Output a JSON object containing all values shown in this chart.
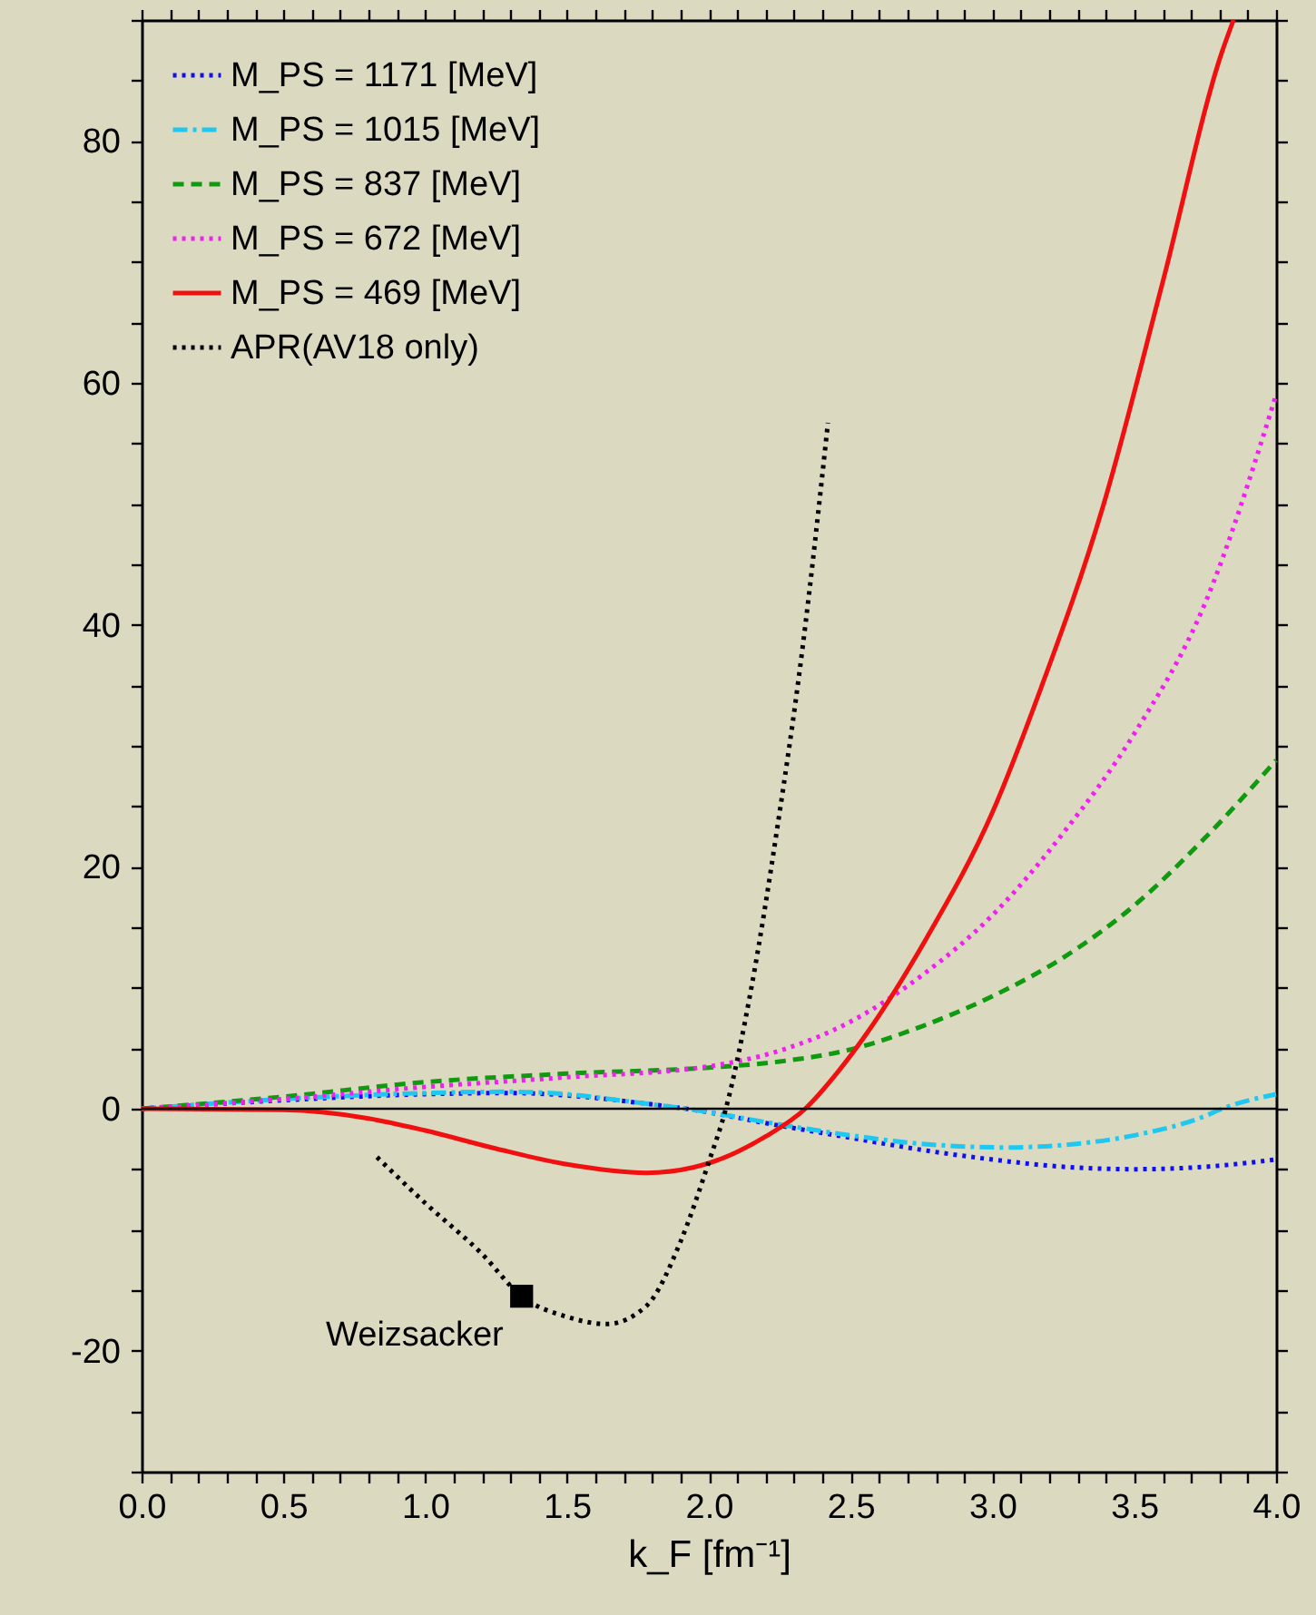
{
  "chart_data": {
    "type": "line",
    "xlabel": "k_F  [fm⁻¹]",
    "xlim": [
      0,
      4
    ],
    "ylim": [
      -30,
      90
    ],
    "xticks": [
      {
        "value": 0,
        "label": "0.0"
      },
      {
        "value": 0.1,
        "label": null
      },
      {
        "value": 0.2,
        "label": null
      },
      {
        "value": 0.3,
        "label": null
      },
      {
        "value": 0.4,
        "label": null
      },
      {
        "value": 0.5,
        "label": "0.5"
      },
      {
        "value": 0.6,
        "label": null
      },
      {
        "value": 0.7,
        "label": null
      },
      {
        "value": 0.8,
        "label": null
      },
      {
        "value": 0.9,
        "label": null
      },
      {
        "value": 1,
        "label": "1.0"
      },
      {
        "value": 1.1,
        "label": null
      },
      {
        "value": 1.2,
        "label": null
      },
      {
        "value": 1.3,
        "label": null
      },
      {
        "value": 1.4,
        "label": null
      },
      {
        "value": 1.5,
        "label": "1.5"
      },
      {
        "value": 1.6,
        "label": null
      },
      {
        "value": 1.7,
        "label": null
      },
      {
        "value": 1.8,
        "label": null
      },
      {
        "value": 1.9,
        "label": null
      },
      {
        "value": 2,
        "label": "2.0"
      },
      {
        "value": 2.1,
        "label": null
      },
      {
        "value": 2.2,
        "label": null
      },
      {
        "value": 2.3,
        "label": null
      },
      {
        "value": 2.4,
        "label": null
      },
      {
        "value": 2.5,
        "label": "2.5"
      },
      {
        "value": 2.6,
        "label": null
      },
      {
        "value": 2.7,
        "label": null
      },
      {
        "value": 2.8,
        "label": null
      },
      {
        "value": 2.9,
        "label": null
      },
      {
        "value": 3,
        "label": "3.0"
      },
      {
        "value": 3.1,
        "label": null
      },
      {
        "value": 3.2,
        "label": null
      },
      {
        "value": 3.3,
        "label": null
      },
      {
        "value": 3.4,
        "label": null
      },
      {
        "value": 3.5,
        "label": "3.5"
      },
      {
        "value": 3.6,
        "label": null
      },
      {
        "value": 3.7,
        "label": null
      },
      {
        "value": 3.8,
        "label": null
      },
      {
        "value": 3.9,
        "label": null
      },
      {
        "value": 4,
        "label": "4.0"
      }
    ],
    "yticks": [
      {
        "value": -30,
        "label": null
      },
      {
        "value": -25,
        "label": null
      },
      -20,
      {
        "value": -15,
        "label": null
      },
      {
        "value": -10,
        "label": null
      },
      {
        "value": -5,
        "label": null
      },
      0,
      {
        "value": 5,
        "label": null
      },
      {
        "value": 10,
        "label": null
      },
      {
        "value": 15,
        "label": null
      },
      20,
      {
        "value": 25,
        "label": null
      },
      {
        "value": 30,
        "label": null
      },
      {
        "value": 35,
        "label": null
      },
      40,
      {
        "value": 45,
        "label": null
      },
      {
        "value": 50,
        "label": null
      },
      {
        "value": 55,
        "label": null
      },
      60,
      {
        "value": 65,
        "label": null
      },
      {
        "value": 70,
        "label": null
      },
      {
        "value": 75,
        "label": null
      },
      80,
      {
        "value": 85,
        "label": null
      },
      {
        "value": 90,
        "label": null
      }
    ],
    "grid": false,
    "legend": "top left",
    "marker": "none",
    "series": [
      {
        "name": "M_PS = 1171 [MeV]",
        "color": "#1010ee",
        "line_style": "dotted",
        "x": [
          0,
          0.5,
          1.0,
          1.3,
          1.5,
          1.75,
          1.92,
          2.25,
          2.5,
          2.75,
          3.0,
          3.25,
          3.5,
          3.75,
          4.0
        ],
        "values": [
          0,
          0.7,
          1.2,
          1.3,
          1.1,
          0.5,
          0,
          -1.4,
          -2.4,
          -3.4,
          -4.2,
          -4.8,
          -5.0,
          -4.8,
          -4.2
        ]
      },
      {
        "name": "M_PS = 1015 [MeV]",
        "color": "#1ec8f0",
        "line_style": "dashdot",
        "x": [
          0,
          0.5,
          1.0,
          1.3,
          1.5,
          1.75,
          1.92,
          2.25,
          2.5,
          2.75,
          3.04,
          3.25,
          3.5,
          3.75,
          3.81,
          4.0
        ],
        "values": [
          0,
          0.8,
          1.3,
          1.4,
          1.2,
          0.5,
          0,
          -1.3,
          -2.2,
          -2.9,
          -3.2,
          -3.0,
          -2.2,
          -0.6,
          0,
          1.2
        ]
      },
      {
        "name": "M_PS = 837 [MeV]",
        "color": "#109a10",
        "line_style": "dashed",
        "x": [
          0,
          0.5,
          1.0,
          1.5,
          2.0,
          2.25,
          2.5,
          2.75,
          3.0,
          3.25,
          3.5,
          3.75,
          4.0
        ],
        "values": [
          0,
          1.0,
          2.2,
          2.9,
          3.4,
          3.9,
          4.9,
          6.8,
          9.3,
          12.5,
          16.8,
          22.4,
          28.8
        ]
      },
      {
        "name": "M_PS = 672 [MeV]",
        "color": "#f020f0",
        "line_style": "dotted",
        "x": [
          0,
          0.5,
          1.0,
          1.5,
          2.0,
          2.25,
          2.5,
          2.75,
          3.0,
          3.25,
          3.5,
          3.75,
          4.0
        ],
        "values": [
          0,
          0.8,
          1.8,
          2.6,
          3.5,
          4.8,
          7.2,
          11,
          16,
          22.8,
          31,
          41.8,
          59
        ]
      },
      {
        "name": "M_PS = 469 [MeV]",
        "color": "#f01010",
        "line_style": "solid",
        "x": [
          0,
          0.5,
          0.8,
          1.0,
          1.25,
          1.5,
          1.78,
          2.0,
          2.2,
          2.34,
          2.45,
          2.55,
          2.77,
          3.0,
          3.17,
          3.39,
          3.6,
          3.81,
          3.85
        ],
        "values": [
          0,
          -0.1,
          -0.8,
          -1.8,
          -3.3,
          -4.6,
          -5.3,
          -4.5,
          -2.3,
          0,
          2.9,
          6.0,
          14.2,
          24.5,
          34.7,
          49.8,
          68.3,
          87.4,
          90
        ]
      },
      {
        "name": "APR(AV18 only)",
        "color": "#000000",
        "line_style": "dotted",
        "x": [
          0.83,
          1.0,
          1.2,
          1.34,
          1.5,
          1.64,
          1.78,
          1.9,
          2.0,
          2.06,
          2.15,
          2.24,
          2.33,
          2.42
        ],
        "values": [
          -4.0,
          -7.8,
          -12.0,
          -15.5,
          -17.2,
          -17.8,
          -16.3,
          -11,
          -4.4,
          0,
          10,
          23,
          38,
          56.7
        ]
      },
      {
        "type": "scatter",
        "marker": "square",
        "color": "#000000",
        "x": [
          1.34
        ],
        "values": [
          -15.5
        ]
      }
    ],
    "ref_lines": [
      {
        "axis": "y",
        "value": 0,
        "color": "#000000"
      }
    ],
    "annotations": [
      {
        "text": "Weizsacker",
        "x": 1.34,
        "y": -15.5
      }
    ]
  }
}
